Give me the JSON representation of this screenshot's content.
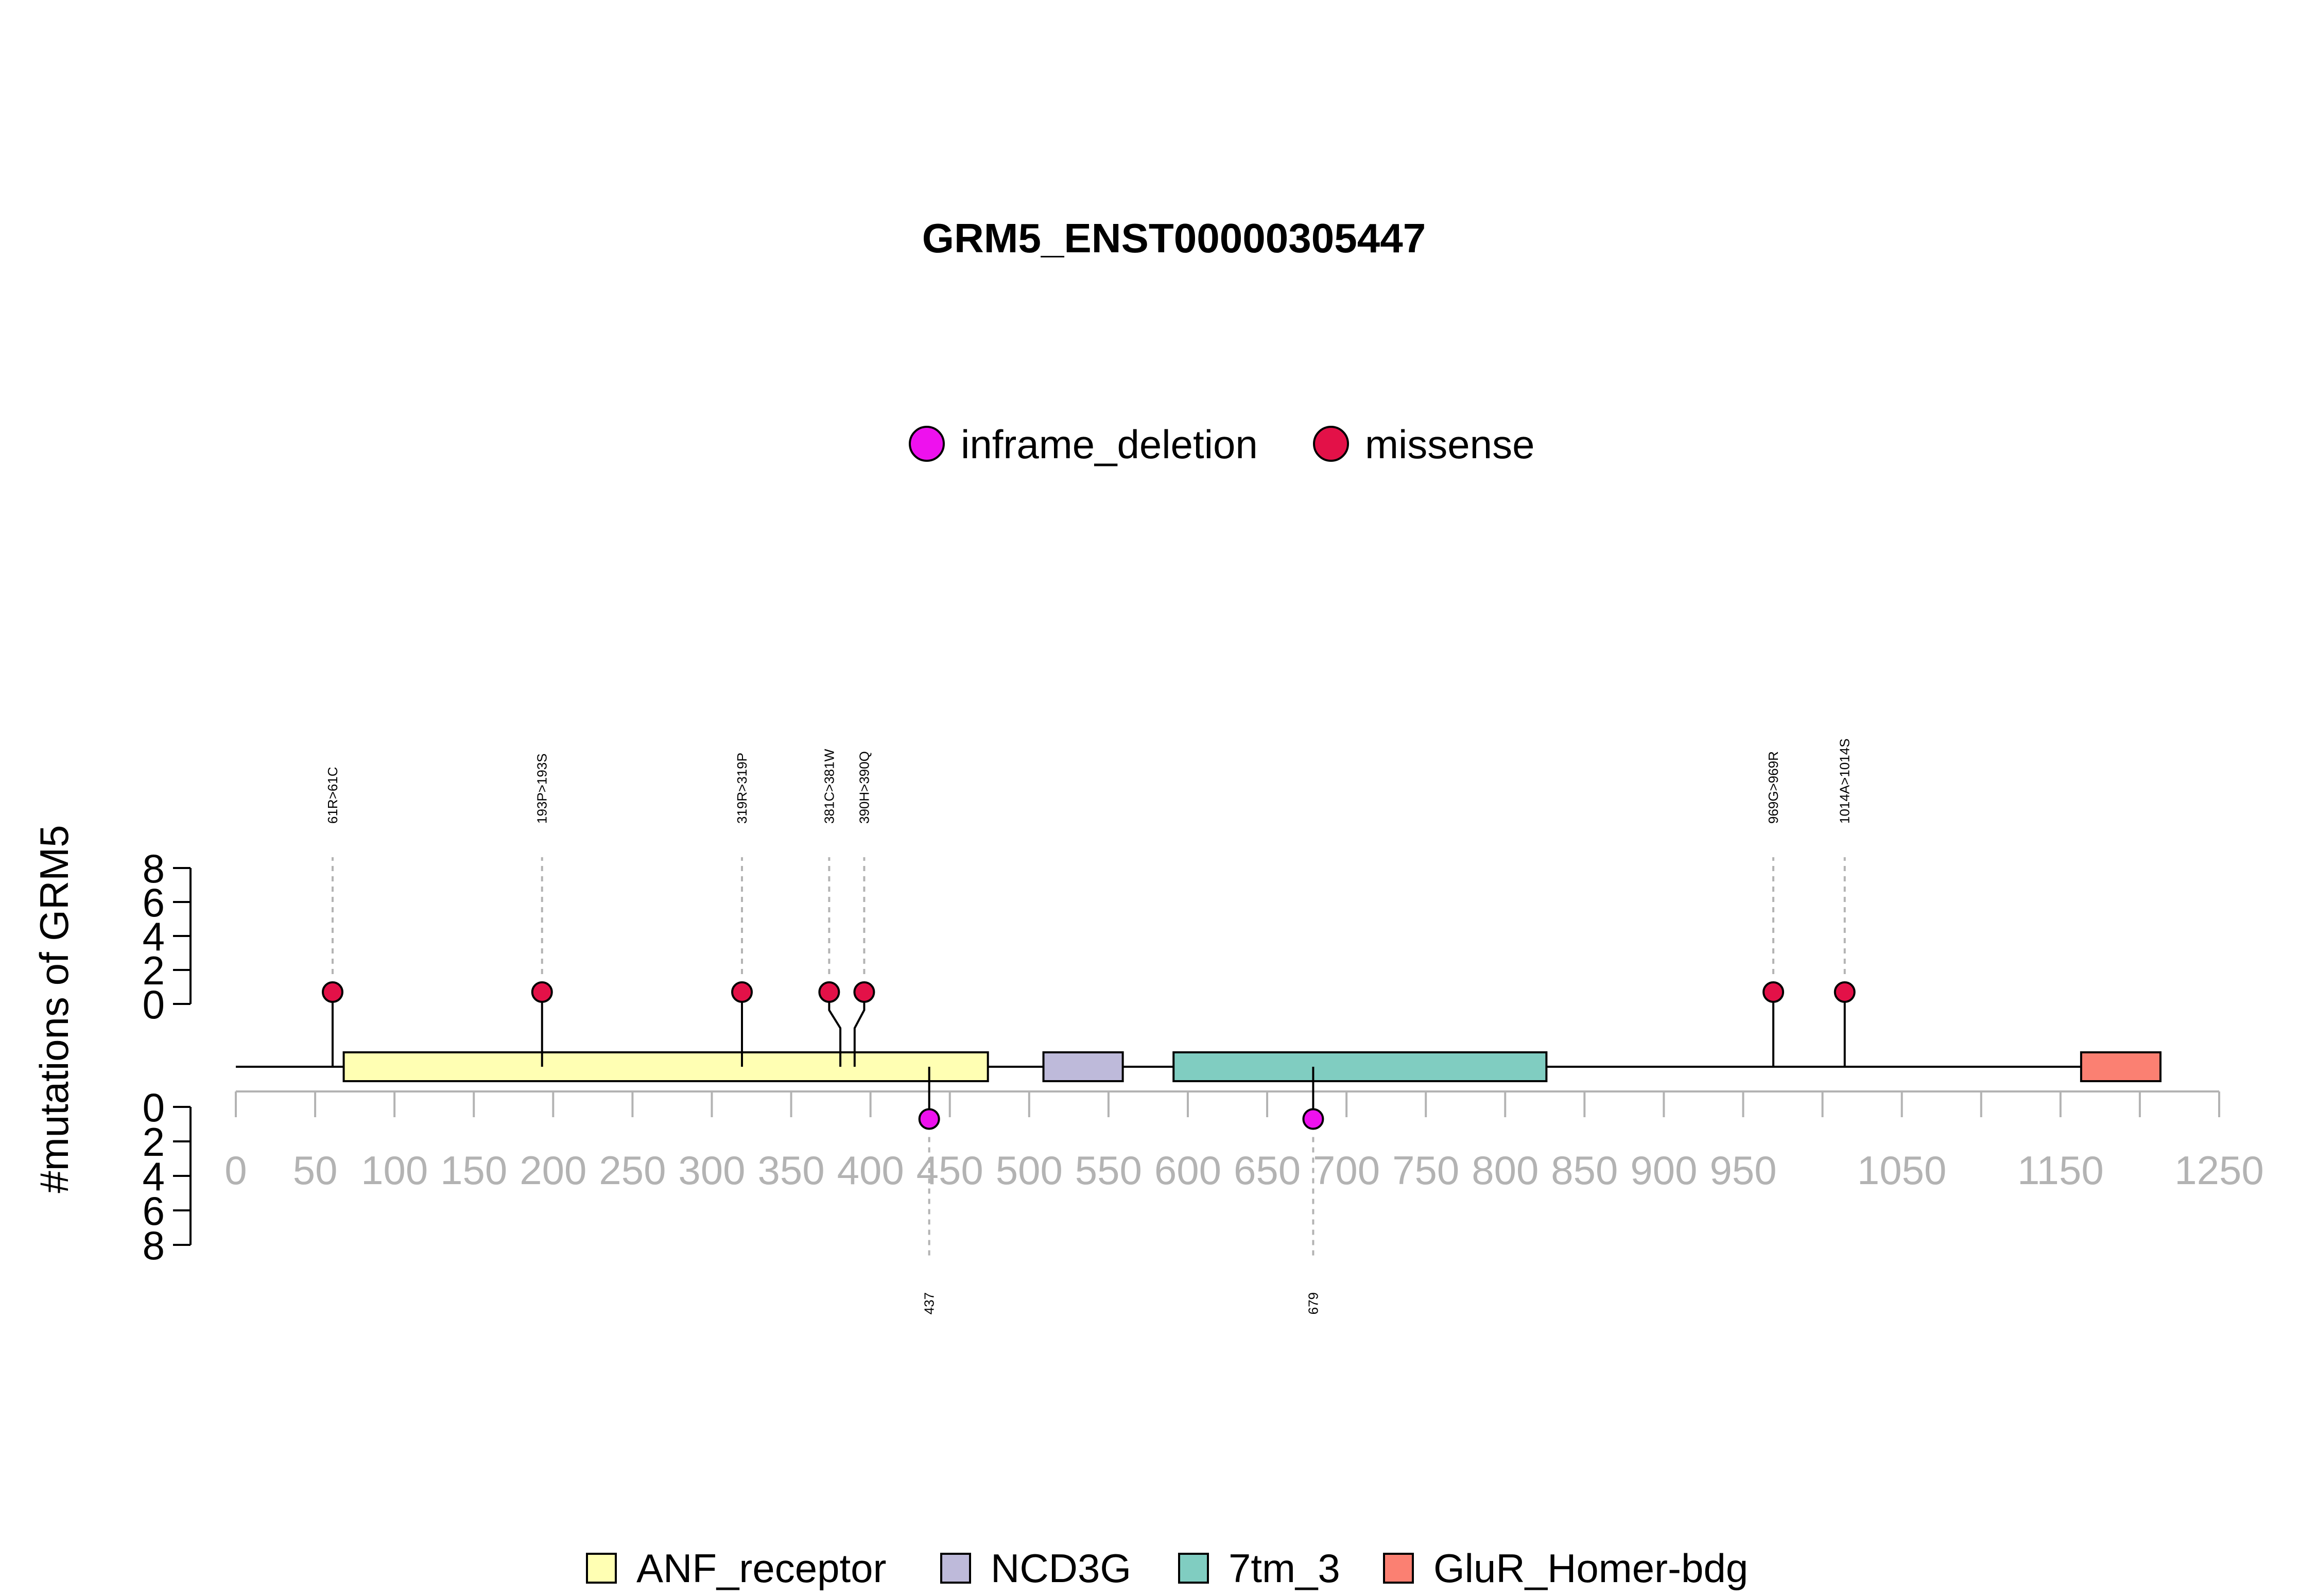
{
  "chart_data": {
    "type": "lollipop",
    "title": "GRM5_ENST00000305447",
    "ylabel": "#mutations of GRM5",
    "protein_length": 1212,
    "xlim": [
      0,
      1250
    ],
    "x_ticks": [
      0,
      50,
      100,
      150,
      200,
      250,
      300,
      350,
      400,
      450,
      500,
      550,
      600,
      650,
      700,
      750,
      800,
      850,
      900,
      950,
      1000,
      1050,
      1100,
      1150,
      1200,
      1250
    ],
    "x_tick_labels": [
      "0",
      "50",
      "100",
      "150",
      "200",
      "250",
      "300",
      "350",
      "400",
      "450",
      "500",
      "550",
      "600",
      "650",
      "700",
      "750",
      "800",
      "850",
      "900",
      "950",
      "",
      "1050",
      "",
      "1150",
      "",
      "1250"
    ],
    "y_ticks_top": [
      "0",
      "2",
      "4",
      "6",
      "8"
    ],
    "y_ticks_bottom": [
      "0",
      "2",
      "4",
      "6",
      "8"
    ],
    "ylim": [
      0,
      8
    ],
    "mutation_legend": [
      {
        "name": "inframe_deletion",
        "color": "#ee11ee"
      },
      {
        "name": "missense",
        "color": "#e31148"
      }
    ],
    "domain_legend": [
      {
        "name": "ANF_receptor",
        "color": "#ffffb3"
      },
      {
        "name": "NCD3G",
        "color": "#bebada"
      },
      {
        "name": "7tm_3",
        "color": "#80cdc1"
      },
      {
        "name": "GluR_Homer-bdg",
        "color": "#fb8072"
      }
    ],
    "domains": [
      {
        "name": "ANF_receptor",
        "start": 68,
        "end": 474,
        "color": "#ffffb3"
      },
      {
        "name": "NCD3G",
        "start": 509,
        "end": 559,
        "color": "#bebada"
      },
      {
        "name": "7tm_3",
        "start": 591,
        "end": 826,
        "color": "#80cdc1"
      },
      {
        "name": "GluR_Homer-bdg",
        "start": 1163,
        "end": 1213,
        "color": "#fb8072"
      }
    ],
    "mutations_top": [
      {
        "pos": 61,
        "label": "61R>61C",
        "count": 1,
        "type": "missense",
        "color": "#e31148",
        "offset": 0
      },
      {
        "pos": 193,
        "label": "193P>193S",
        "count": 1,
        "type": "missense",
        "color": "#e31148",
        "offset": 0
      },
      {
        "pos": 319,
        "label": "319R>319P",
        "count": 1,
        "type": "missense",
        "color": "#e31148",
        "offset": 0
      },
      {
        "pos": 381,
        "label": "381C>381W",
        "count": 1,
        "type": "missense",
        "color": "#e31148",
        "offset": -7
      },
      {
        "pos": 390,
        "label": "390H>390Q",
        "count": 1,
        "type": "missense",
        "color": "#e31148",
        "offset": 6
      },
      {
        "pos": 969,
        "label": "969G>969R",
        "count": 1,
        "type": "missense",
        "color": "#e31148",
        "offset": 0
      },
      {
        "pos": 1014,
        "label": "1014A>1014S",
        "count": 1,
        "type": "missense",
        "color": "#e31148",
        "offset": 0
      }
    ],
    "mutations_bottom": [
      {
        "pos": 437,
        "label": "437",
        "count": 1,
        "type": "inframe_deletion",
        "color": "#ee11ee",
        "offset": 0
      },
      {
        "pos": 679,
        "label": "679",
        "count": 1,
        "type": "inframe_deletion",
        "color": "#ee11ee",
        "offset": 0
      }
    ]
  }
}
